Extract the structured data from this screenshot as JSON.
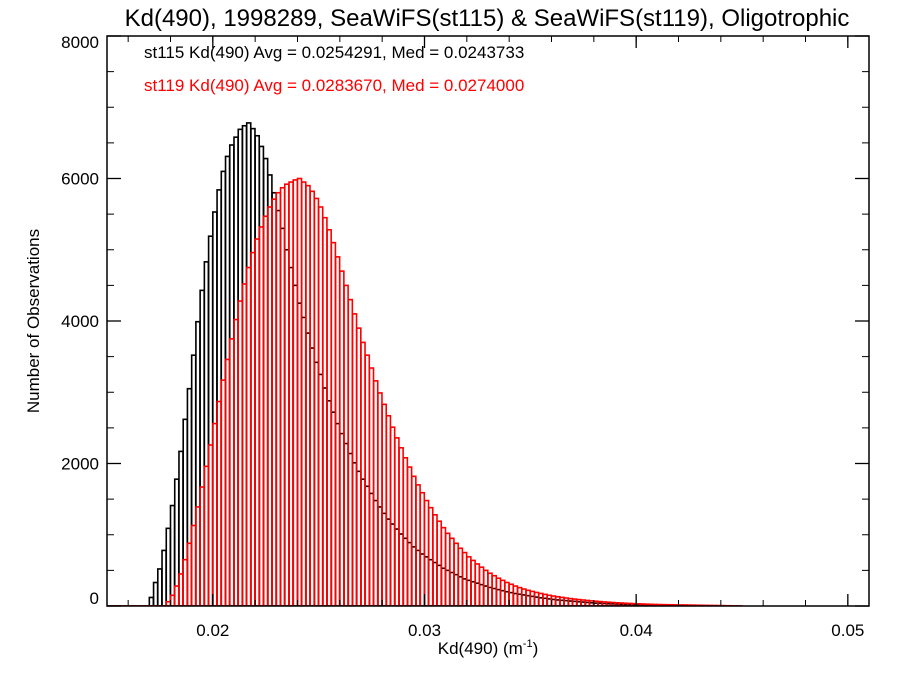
{
  "chart_data": {
    "type": "histogram",
    "title": "Kd(490), 1998289, SeaWiFS(st115) & SeaWiFS(st119), Oligotrophic",
    "xlabel_main": "Kd(490) (m",
    "xlabel_sup": "-1",
    "xlabel_close": ")",
    "ylabel": "Number of Observations",
    "xlim": [
      0.015,
      0.051
    ],
    "ylim": [
      0,
      8000
    ],
    "xticks": [
      0.02,
      0.03,
      0.04,
      0.05
    ],
    "xtick_labels": [
      "0.02",
      "0.03",
      "0.04",
      "0.05"
    ],
    "yticks": [
      0,
      2000,
      4000,
      6000,
      8000
    ],
    "ytick_labels": [
      "0",
      "2000",
      "4000",
      "6000",
      "8000"
    ],
    "bin_start": 0.015,
    "bin_width": 0.0002,
    "series": [
      {
        "name": "st115",
        "color": "#000000",
        "legend": "st115 Kd(490) Avg = 0.0254291, Med = 0.0243733",
        "values": [
          0,
          0,
          0,
          0,
          0,
          0,
          0,
          0,
          0,
          0,
          120,
          330,
          520,
          780,
          1090,
          1410,
          1780,
          2170,
          2620,
          3050,
          3520,
          3990,
          4430,
          4830,
          5190,
          5530,
          5840,
          6100,
          6310,
          6470,
          6580,
          6690,
          6740,
          6780,
          6700,
          6600,
          6450,
          6280,
          6050,
          5800,
          5550,
          5300,
          5000,
          4750,
          4500,
          4250,
          4050,
          3830,
          3620,
          3420,
          3250,
          3060,
          2880,
          2720,
          2560,
          2420,
          2280,
          2140,
          2010,
          1890,
          1780,
          1680,
          1580,
          1480,
          1390,
          1300,
          1220,
          1150,
          1080,
          1010,
          950,
          890,
          830,
          780,
          730,
          690,
          650,
          610,
          570,
          530,
          500,
          470,
          440,
          410,
          380,
          360,
          340,
          320,
          300,
          280,
          260,
          245,
          230,
          215,
          200,
          188,
          175,
          165,
          155,
          145,
          135,
          125,
          115,
          108,
          100,
          92,
          85,
          80,
          75,
          70,
          65,
          60,
          55,
          50,
          45,
          40,
          38,
          35,
          32,
          30,
          28,
          25,
          22,
          20,
          18,
          15,
          12,
          10,
          8,
          6,
          4,
          3,
          2,
          1
        ]
      },
      {
        "name": "st119",
        "color": "#ff0000",
        "legend": "st119 Kd(490) Avg = 0.0283670, Med = 0.0274000",
        "values": [
          0,
          0,
          0,
          0,
          0,
          0,
          0,
          0,
          0,
          0,
          0,
          0,
          0,
          0,
          60,
          150,
          280,
          450,
          650,
          880,
          1130,
          1390,
          1670,
          1960,
          2260,
          2560,
          2870,
          3170,
          3460,
          3750,
          4020,
          4280,
          4520,
          4750,
          4960,
          5150,
          5320,
          5470,
          5600,
          5710,
          5800,
          5870,
          5920,
          5950,
          5980,
          6000,
          5950,
          5900,
          5820,
          5720,
          5600,
          5450,
          5280,
          5100,
          4900,
          4700,
          4500,
          4300,
          4100,
          3900,
          3700,
          3520,
          3340,
          3160,
          2990,
          2830,
          2670,
          2510,
          2360,
          2220,
          2080,
          1950,
          1820,
          1700,
          1590,
          1480,
          1380,
          1280,
          1190,
          1100,
          1020,
          950,
          880,
          810,
          750,
          690,
          640,
          590,
          545,
          500,
          460,
          425,
          390,
          360,
          330,
          305,
          280,
          258,
          238,
          220,
          205,
          190,
          176,
          163,
          150,
          140,
          130,
          121,
          112,
          104,
          97,
          90,
          84,
          78,
          72,
          67,
          62,
          57,
          53,
          49,
          45,
          42,
          39,
          36,
          33,
          30,
          28,
          26,
          24,
          22,
          20,
          19,
          18,
          17,
          16,
          15,
          14,
          13,
          12,
          11,
          10,
          9,
          8,
          7,
          6,
          5,
          4,
          3,
          2,
          1
        ]
      }
    ]
  }
}
